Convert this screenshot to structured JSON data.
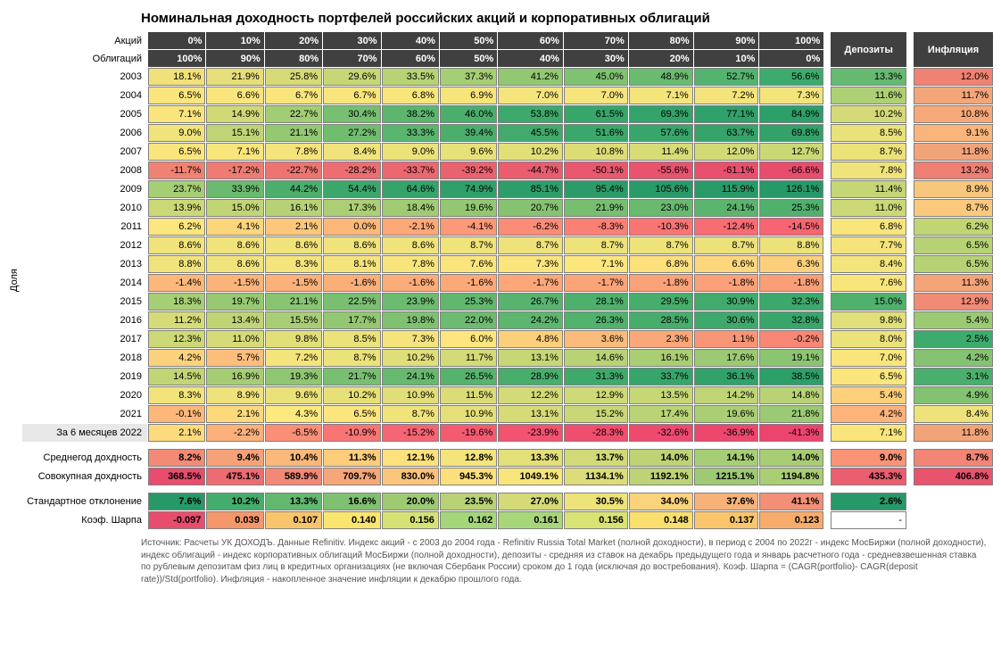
{
  "title": "Номинальная доходность портфелей российских акций и корпоративных облигаций",
  "axis_label": "Доля",
  "row_header_stocks": "Акций",
  "row_header_bonds": "Облигаций",
  "pct_stocks": [
    "0%",
    "10%",
    "20%",
    "30%",
    "40%",
    "50%",
    "60%",
    "70%",
    "80%",
    "90%",
    "100%"
  ],
  "pct_bonds": [
    "100%",
    "90%",
    "80%",
    "70%",
    "60%",
    "50%",
    "40%",
    "30%",
    "20%",
    "10%",
    "0%"
  ],
  "col_deposits": "Депозиты",
  "col_inflation": "Инфляция",
  "years": [
    "2003",
    "2004",
    "2005",
    "2006",
    "2007",
    "2008",
    "2009",
    "2010",
    "2011",
    "2012",
    "2013",
    "2014",
    "2015",
    "2016",
    "2017",
    "2018",
    "2019",
    "2020",
    "2021",
    "За 6 месяцев 2022"
  ],
  "data": [
    [
      "18.1%",
      "21.9%",
      "25.8%",
      "29.6%",
      "33.5%",
      "37.3%",
      "41.2%",
      "45.0%",
      "48.9%",
      "52.7%",
      "56.6%",
      "13.3%",
      "12.0%"
    ],
    [
      "6.5%",
      "6.6%",
      "6.7%",
      "6.7%",
      "6.8%",
      "6.9%",
      "7.0%",
      "7.0%",
      "7.1%",
      "7.2%",
      "7.3%",
      "11.6%",
      "11.7%"
    ],
    [
      "7.1%",
      "14.9%",
      "22.7%",
      "30.4%",
      "38.2%",
      "46.0%",
      "53.8%",
      "61.5%",
      "69.3%",
      "77.1%",
      "84.9%",
      "10.2%",
      "10.8%"
    ],
    [
      "9.0%",
      "15.1%",
      "21.1%",
      "27.2%",
      "33.3%",
      "39.4%",
      "45.5%",
      "51.6%",
      "57.6%",
      "63.7%",
      "69.8%",
      "8.5%",
      "9.1%"
    ],
    [
      "6.5%",
      "7.1%",
      "7.8%",
      "8.4%",
      "9.0%",
      "9.6%",
      "10.2%",
      "10.8%",
      "11.4%",
      "12.0%",
      "12.7%",
      "8.7%",
      "11.8%"
    ],
    [
      "-11.7%",
      "-17.2%",
      "-22.7%",
      "-28.2%",
      "-33.7%",
      "-39.2%",
      "-44.7%",
      "-50.1%",
      "-55.6%",
      "-61.1%",
      "-66.6%",
      "7.8%",
      "13.2%"
    ],
    [
      "23.7%",
      "33.9%",
      "44.2%",
      "54.4%",
      "64.6%",
      "74.9%",
      "85.1%",
      "95.4%",
      "105.6%",
      "115.9%",
      "126.1%",
      "11.4%",
      "8.9%"
    ],
    [
      "13.9%",
      "15.0%",
      "16.1%",
      "17.3%",
      "18.4%",
      "19.6%",
      "20.7%",
      "21.9%",
      "23.0%",
      "24.1%",
      "25.3%",
      "11.0%",
      "8.7%"
    ],
    [
      "6.2%",
      "4.1%",
      "2.1%",
      "0.0%",
      "-2.1%",
      "-4.1%",
      "-6.2%",
      "-8.3%",
      "-10.3%",
      "-12.4%",
      "-14.5%",
      "6.8%",
      "6.2%"
    ],
    [
      "8.6%",
      "8.6%",
      "8.6%",
      "8.6%",
      "8.6%",
      "8.7%",
      "8.7%",
      "8.7%",
      "8.7%",
      "8.7%",
      "8.8%",
      "7.7%",
      "6.5%"
    ],
    [
      "8.8%",
      "8.6%",
      "8.3%",
      "8.1%",
      "7.8%",
      "7.6%",
      "7.3%",
      "7.1%",
      "6.8%",
      "6.6%",
      "6.3%",
      "8.4%",
      "6.5%"
    ],
    [
      "-1.4%",
      "-1.5%",
      "-1.5%",
      "-1.6%",
      "-1.6%",
      "-1.6%",
      "-1.7%",
      "-1.7%",
      "-1.8%",
      "-1.8%",
      "-1.8%",
      "7.6%",
      "11.3%"
    ],
    [
      "18.3%",
      "19.7%",
      "21.1%",
      "22.5%",
      "23.9%",
      "25.3%",
      "26.7%",
      "28.1%",
      "29.5%",
      "30.9%",
      "32.3%",
      "15.0%",
      "12.9%"
    ],
    [
      "11.2%",
      "13.4%",
      "15.5%",
      "17.7%",
      "19.8%",
      "22.0%",
      "24.2%",
      "26.3%",
      "28.5%",
      "30.6%",
      "32.8%",
      "9.8%",
      "5.4%"
    ],
    [
      "12.3%",
      "11.0%",
      "9.8%",
      "8.5%",
      "7.3%",
      "6.0%",
      "4.8%",
      "3.6%",
      "2.3%",
      "1.1%",
      "-0.2%",
      "8.0%",
      "2.5%"
    ],
    [
      "4.2%",
      "5.7%",
      "7.2%",
      "8.7%",
      "10.2%",
      "11.7%",
      "13.1%",
      "14.6%",
      "16.1%",
      "17.6%",
      "19.1%",
      "7.0%",
      "4.2%"
    ],
    [
      "14.5%",
      "16.9%",
      "19.3%",
      "21.7%",
      "24.1%",
      "26.5%",
      "28.9%",
      "31.3%",
      "33.7%",
      "36.1%",
      "38.5%",
      "6.5%",
      "3.1%"
    ],
    [
      "8.3%",
      "8.9%",
      "9.6%",
      "10.2%",
      "10.9%",
      "11.5%",
      "12.2%",
      "12.9%",
      "13.5%",
      "14.2%",
      "14.8%",
      "5.4%",
      "4.9%"
    ],
    [
      "-0.1%",
      "2.1%",
      "4.3%",
      "6.5%",
      "8.7%",
      "10.9%",
      "13.1%",
      "15.2%",
      "17.4%",
      "19.6%",
      "21.8%",
      "4.2%",
      "8.4%"
    ],
    [
      "2.1%",
      "-2.2%",
      "-6.5%",
      "-10.9%",
      "-15.2%",
      "-19.6%",
      "-23.9%",
      "-28.3%",
      "-32.6%",
      "-36.9%",
      "-41.3%",
      "7.1%",
      "11.8%"
    ]
  ],
  "summary_labels": [
    "Среднегод дохдность",
    "Совокупная дохдность",
    "Стандартное отклонение",
    "Коэф. Шарпа"
  ],
  "summary_data": [
    [
      "8.2%",
      "9.4%",
      "10.4%",
      "11.3%",
      "12.1%",
      "12.8%",
      "13.3%",
      "13.7%",
      "14.0%",
      "14.1%",
      "14.0%",
      "9.0%",
      "8.7%"
    ],
    [
      "368.5%",
      "475.1%",
      "589.9%",
      "709.7%",
      "830.0%",
      "945.3%",
      "1049.1%",
      "1134.1%",
      "1192.1%",
      "1215.1%",
      "1194.8%",
      "435.3%",
      "406.8%"
    ],
    [
      "7.6%",
      "10.2%",
      "13.3%",
      "16.6%",
      "20.0%",
      "23.5%",
      "27.0%",
      "30.5%",
      "34.0%",
      "37.6%",
      "41.1%",
      "2.6%",
      ""
    ],
    [
      "-0.097",
      "0.039",
      "0.107",
      "0.140",
      "0.156",
      "0.162",
      "0.161",
      "0.156",
      "0.148",
      "0.137",
      "0.123",
      "-",
      ""
    ]
  ],
  "colors": [
    [
      "#f2e17a",
      "#e6de78",
      "#d7db77",
      "#c8d776",
      "#b8d375",
      "#a6ce74",
      "#93c872",
      "#7fc271",
      "#6abb70",
      "#54b36e",
      "#3dab6d",
      "#66b970",
      "#f08273"
    ],
    [
      "#fbe57d",
      "#fae57d",
      "#f9e57c",
      "#f9e57c",
      "#f8e57c",
      "#f7e57c",
      "#f6e57c",
      "#f6e47c",
      "#f5e47c",
      "#f4e47b",
      "#f3e47b",
      "#aed074",
      "#f2a679"
    ],
    [
      "#fae57d",
      "#d1d977",
      "#a3cd74",
      "#77bf71",
      "#5cb66e",
      "#4aae6c",
      "#3ea96c",
      "#37a66b",
      "#33a36a",
      "#30a16a",
      "#2d9f69",
      "#d4da77",
      "#f6a879"
    ],
    [
      "#f0e37b",
      "#c1d475",
      "#94c972",
      "#70bd70",
      "#5ab56e",
      "#4bae6c",
      "#42aa6c",
      "#3ca76b",
      "#38a56b",
      "#35a36a",
      "#33a16a",
      "#e9e17a",
      "#fab57a"
    ],
    [
      "#fbe57d",
      "#f8e57c",
      "#f4e47b",
      "#f0e37b",
      "#ece27a",
      "#e7e179",
      "#e2df79",
      "#dddd78",
      "#d7dc77",
      "#d1da77",
      "#cbd876",
      "#ece27a",
      "#f2a479"
    ],
    [
      "#f08273",
      "#ef7b72",
      "#ee7471",
      "#ed6e71",
      "#ec6870",
      "#eb626f",
      "#ea5d6f",
      "#e9586e",
      "#e8536e",
      "#e8506d",
      "#e84d6d",
      "#f0e37b",
      "#ef7e73"
    ],
    [
      "#a6ce74",
      "#6abb6f",
      "#4bae6c",
      "#3ca76b",
      "#35a36a",
      "#30a06a",
      "#2d9e69",
      "#2b9c69",
      "#299b69",
      "#289a68",
      "#279968",
      "#c5d676",
      "#f8c67c"
    ],
    [
      "#cad876",
      "#c1d575",
      "#b7d275",
      "#acce74",
      "#a0cb73",
      "#93c772",
      "#85c371",
      "#77be71",
      "#69ba6f",
      "#5cb56e",
      "#50b16d",
      "#ccd876",
      "#fac97c"
    ],
    [
      "#fce67d",
      "#fdd67c",
      "#fdc77b",
      "#fdb77a",
      "#fda879",
      "#fc9978",
      "#fb8c77",
      "#fa8075",
      "#f97574",
      "#f86c73",
      "#f76472",
      "#f8e57c",
      "#c1d575"
    ],
    [
      "#f1e37b",
      "#f1e37b",
      "#f1e37b",
      "#f0e37b",
      "#f0e37b",
      "#efe37a",
      "#efe27a",
      "#eee27a",
      "#eee27a",
      "#ede27a",
      "#ede27a",
      "#f5e47c",
      "#b7d275"
    ],
    [
      "#f0e37b",
      "#f1e37b",
      "#f3e47b",
      "#f5e47c",
      "#f7e57c",
      "#f9e57c",
      "#fbe57d",
      "#fde77d",
      "#fddf7c",
      "#fcd77c",
      "#fbcf7b",
      "#f3e47b",
      "#b7d275"
    ],
    [
      "#fcb77a",
      "#fcb47a",
      "#fcb17a",
      "#fcae79",
      "#fcac79",
      "#fba979",
      "#fba779",
      "#fba478",
      "#fba278",
      "#fba078",
      "#fa9e78",
      "#f7e57c",
      "#f3a479"
    ],
    [
      "#a6ce74",
      "#97c972",
      "#88c472",
      "#7abf71",
      "#6dbb70",
      "#61b76e",
      "#57b36e",
      "#4eb06d",
      "#47ad6c",
      "#41aa6c",
      "#3ca86b",
      "#50b16d",
      "#f08b75"
    ],
    [
      "#d5db77",
      "#bfd475",
      "#a9cd74",
      "#93c772",
      "#7fc171",
      "#6dbb70",
      "#5db66e",
      "#50b26d",
      "#46ad6c",
      "#3ea96c",
      "#38a66b",
      "#e1df79",
      "#9cca73"
    ],
    [
      "#cdd976",
      "#d7db77",
      "#e1df78",
      "#ebe27a",
      "#f4e47b",
      "#fde67d",
      "#fcd07b",
      "#fbbb7a",
      "#faa879",
      "#f99677",
      "#f88776",
      "#ece27a",
      "#3dab6d"
    ],
    [
      "#fdd27c",
      "#fdbe7b",
      "#f5e47b",
      "#ebe27a",
      "#e0de79",
      "#d4da77",
      "#c7d776",
      "#b9d275",
      "#aace74",
      "#9bca73",
      "#8cc572",
      "#f9e57c",
      "#85c372"
    ],
    [
      "#c2d575",
      "#a7cd74",
      "#8fc672",
      "#79bf71",
      "#66b96f",
      "#56b36e",
      "#49ae6c",
      "#3ea96b",
      "#37a56b",
      "#31a26a",
      "#2d9f69",
      "#fbe57d",
      "#4aaf6c"
    ],
    [
      "#f2e47b",
      "#efe27a",
      "#eae17a",
      "#e6e079",
      "#e0de79",
      "#dbdc78",
      "#d4da77",
      "#ced977",
      "#c7d776",
      "#c0d475",
      "#b8d275",
      "#fed07b",
      "#83c271"
    ],
    [
      "#fdb77a",
      "#fdd97c",
      "#fde97d",
      "#fbe57d",
      "#f0e37a",
      "#e4df79",
      "#d7db77",
      "#c9d776",
      "#bad375",
      "#aace74",
      "#9aca73",
      "#fdb37a",
      "#eee27a"
    ],
    [
      "#fdda7c",
      "#fcb07a",
      "#fa8e77",
      "#f87574",
      "#f66573",
      "#f45b71",
      "#f25370",
      "#f04e6f",
      "#ee4a6e",
      "#ed476e",
      "#ec456d",
      "#f9e57c",
      "#f2a479"
    ]
  ],
  "summary_colors": [
    [
      "#f28a75",
      "#f6a279",
      "#fab87a",
      "#fecd7b",
      "#fde17c",
      "#f3e47b",
      "#e3df79",
      "#d1da77",
      "#bdd375",
      "#a6ce74",
      "#a9cd74",
      "#f99477",
      "#f28575"
    ],
    [
      "#e84d6d",
      "#ed6b71",
      "#f28976",
      "#f6a779",
      "#fac47b",
      "#fde07c",
      "#f7e57c",
      "#dcdd78",
      "#bed375",
      "#9eca73",
      "#aace74",
      "#eb5e6f",
      "#e9536e"
    ],
    [
      "#279968",
      "#45ad6c",
      "#62b86f",
      "#80c171",
      "#9dca73",
      "#b9d275",
      "#d4da77",
      "#eee27a",
      "#fbd37b",
      "#f7b27a",
      "#f28f76",
      "#279968",
      ""
    ],
    [
      "#e84d6d",
      "#f4976a",
      "#f8c46c",
      "#fbe56f",
      "#d7e275",
      "#a5d67a",
      "#a8d77a",
      "#d9e374",
      "#fbdf6e",
      "#fbc56c",
      "#f8ac6b",
      "#ffffff",
      ""
    ]
  ],
  "footer": "Источник: Расчеты УК ДОХОДЪ. Данные Refinitiv. Индекс акций - с 2003 до 2004 года - Refinitiv Russia Total Market (полной доходности), в период с 2004 по 2022г - индекс МосБиржи (полной доходности), индекс облигаций - индекс корпоративных облигаций МосБиржи (полной доходности), депозиты - средняя из ставок на декабрь предыдущего года и январь расчетного года - средневзвешенная ставка по рублевым депозитам физ лиц в кредитных организациях (не включая Сбербанк России) сроком до 1 года (исключая до востребования). Коэф. Шарпа = (CAGR(portfolio)- CAGR(deposit rate))/Std(portfolio). Инфляция - накопленное значение инфляции к декабрю прошлого года."
}
